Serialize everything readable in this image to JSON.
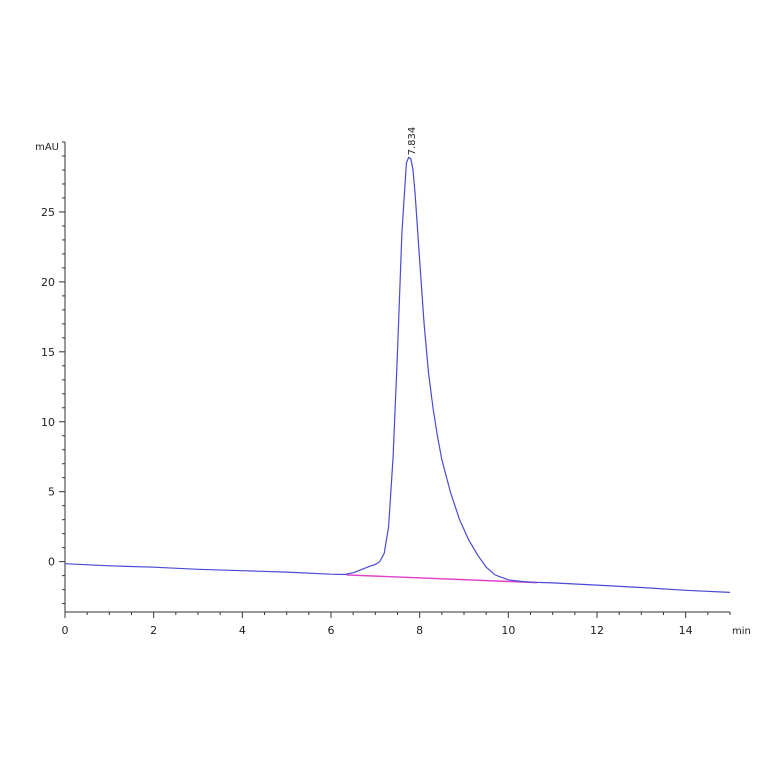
{
  "chart_data": {
    "type": "line",
    "title": "",
    "xlabel": "",
    "ylabel": "",
    "x_unit": "min",
    "y_unit": "mAU",
    "xlim": [
      0,
      15
    ],
    "ylim": [
      -3.6,
      30
    ],
    "x_ticks": [
      0,
      2,
      4,
      6,
      8,
      10,
      12,
      14
    ],
    "y_ticks": [
      0,
      5,
      10,
      15,
      20,
      25
    ],
    "grid": false,
    "legend": "none",
    "colors": {
      "signal": "#4a4ad6",
      "baseline": "#e040c8",
      "axis": "#333333"
    },
    "series": [
      {
        "x": [
          0,
          1,
          2,
          3,
          4,
          5,
          6,
          6.3,
          6.5,
          6.7,
          6.9,
          7.0,
          7.1,
          7.2,
          7.3,
          7.4,
          7.5,
          7.6,
          7.7,
          7.75,
          7.8,
          7.85,
          7.9,
          8.0,
          8.1,
          8.2,
          8.3,
          8.4,
          8.5,
          8.7,
          8.9,
          9.1,
          9.3,
          9.5,
          9.7,
          10.0,
          10.3,
          10.6,
          11,
          12,
          13,
          14,
          15
        ],
        "y": [
          -0.15,
          -0.3,
          -0.4,
          -0.55,
          -0.65,
          -0.75,
          -0.9,
          -0.92,
          -0.8,
          -0.55,
          -0.3,
          -0.2,
          0.0,
          0.6,
          2.5,
          7.5,
          15.0,
          23.5,
          28.5,
          28.9,
          28.8,
          28.0,
          26.2,
          21.5,
          17.0,
          13.5,
          11.0,
          9.0,
          7.3,
          4.9,
          3.0,
          1.6,
          0.5,
          -0.4,
          -0.95,
          -1.3,
          -1.42,
          -1.48,
          -1.52,
          -1.68,
          -1.85,
          -2.05,
          -2.2
        ]
      }
    ],
    "baseline": {
      "x": [
        6.35,
        10.65
      ],
      "y": [
        -0.95,
        -1.5
      ]
    },
    "peaks": [
      {
        "x": 7.8,
        "y": 28.9,
        "label": "7.834"
      }
    ]
  }
}
